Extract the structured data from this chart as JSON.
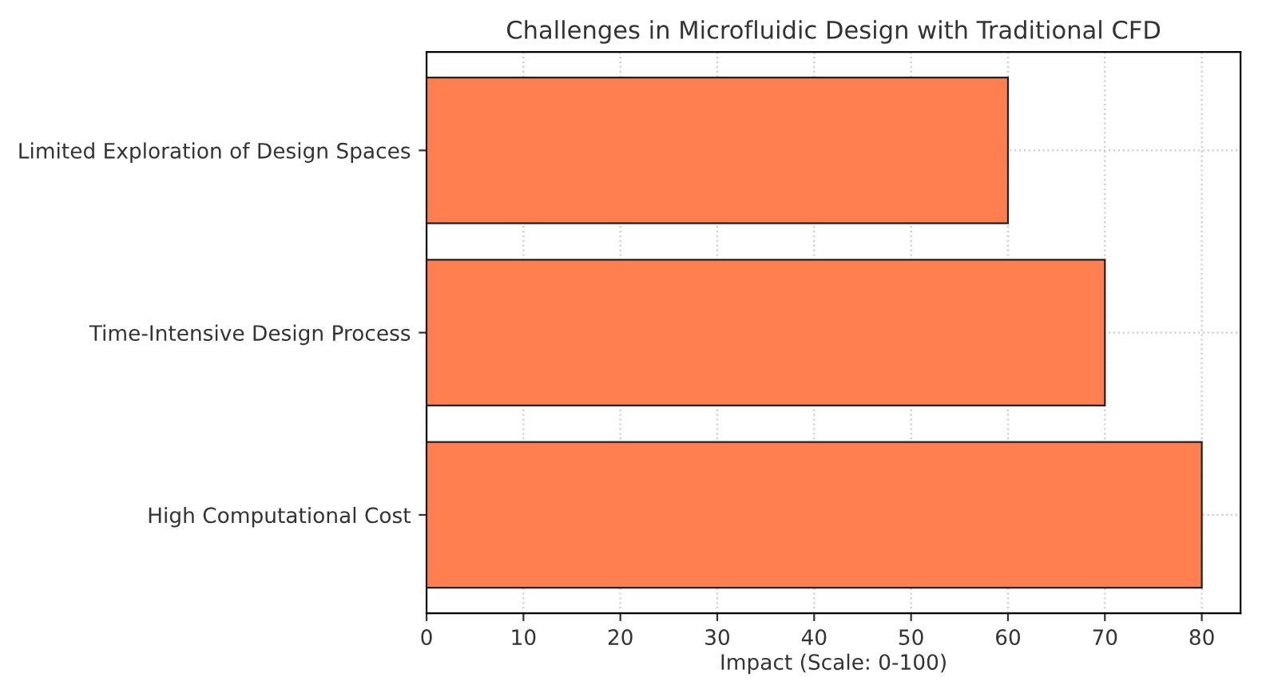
{
  "chart_data": {
    "type": "bar",
    "orientation": "horizontal",
    "title": "Challenges in Microfluidic Design with Traditional CFD",
    "xlabel": "Impact (Scale: 0-100)",
    "categories": [
      "Limited Exploration of Design Spaces",
      "Time-Intensive Design Process",
      "High Computational Cost"
    ],
    "values": [
      60,
      70,
      80
    ],
    "color": "#ff7f50",
    "xlim": [
      0,
      84
    ],
    "xticks": [
      0,
      10,
      20,
      30,
      40,
      50,
      60,
      70,
      80
    ],
    "grid": true
  }
}
